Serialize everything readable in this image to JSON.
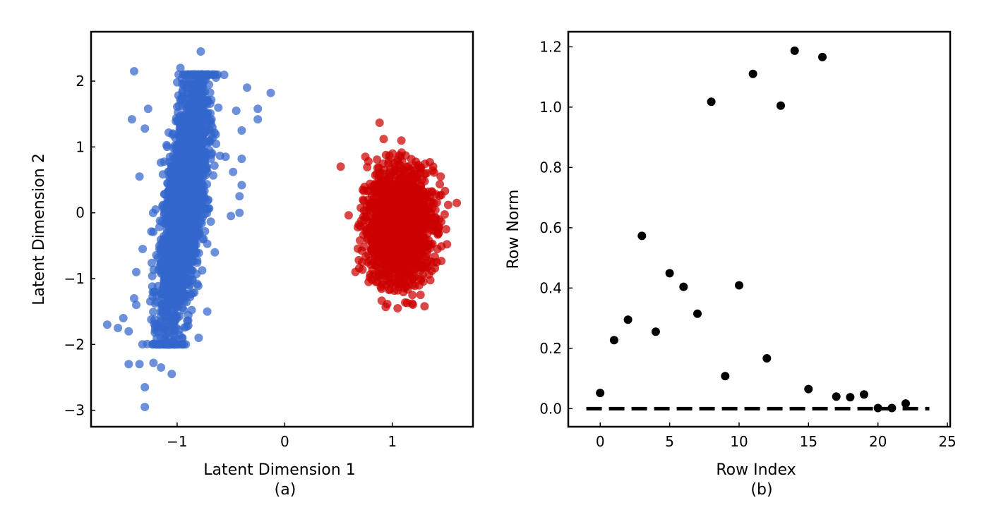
{
  "colors": {
    "cluster_blue": "#3366cc",
    "cluster_red": "#cc0000",
    "points": "#000000",
    "reference_line": "#000000"
  },
  "chart_data": [
    {
      "type": "scatter",
      "panel_label": "(a)",
      "title": "",
      "xlabel": "Latent Dimension 1",
      "ylabel": "Latent Dimension 2",
      "xlim": [
        -1.8,
        1.75
      ],
      "ylim": [
        -3.25,
        2.75
      ],
      "xticks": [
        -1,
        0,
        1
      ],
      "yticks": [
        -3,
        -2,
        -1,
        0,
        1,
        2
      ],
      "xtick_labels": [
        "−1",
        "0",
        "1"
      ],
      "ytick_labels": [
        "−3",
        "−2",
        "−1",
        "0",
        "1",
        "2"
      ],
      "grid": false,
      "series": [
        {
          "color": "#3366cc",
          "cluster": {
            "count": 2600,
            "center": [
              -0.93,
              0.2
            ],
            "std_along_axis": 1.0,
            "std_across_axis": 0.085,
            "y_range": [
              -2.0,
              2.1
            ]
          },
          "outliers": [
            [
              -1.4,
              2.15
            ],
            [
              -1.65,
              -1.7
            ],
            [
              -1.55,
              -1.75
            ],
            [
              -1.45,
              -2.3
            ],
            [
              -1.35,
              -2.3
            ],
            [
              -1.3,
              -2.65
            ],
            [
              -1.3,
              -2.95
            ],
            [
              -1.15,
              -2.35
            ],
            [
              -1.05,
              -2.45
            ],
            [
              -1.5,
              -1.6
            ],
            [
              -1.45,
              -1.8
            ],
            [
              -1.38,
              -1.4
            ],
            [
              -1.42,
              1.42
            ],
            [
              -0.78,
              2.45
            ],
            [
              -0.35,
              1.9
            ],
            [
              -0.13,
              1.82
            ],
            [
              -0.25,
              1.58
            ],
            [
              -0.25,
              1.42
            ],
            [
              -0.4,
              1.25
            ],
            [
              -0.4,
              0.82
            ],
            [
              -0.4,
              0.42
            ],
            [
              -0.42,
              0.25
            ],
            [
              -0.42,
              0.0
            ],
            [
              -0.5,
              -0.05
            ],
            [
              -0.65,
              -0.6
            ],
            [
              -1.3,
              1.28
            ],
            [
              -1.35,
              0.55
            ],
            [
              -1.38,
              -0.9
            ],
            [
              -1.4,
              -1.3
            ],
            [
              -0.72,
              -1.5
            ],
            [
              -0.95,
              -1.9
            ],
            [
              -0.8,
              -1.9
            ],
            [
              -0.97,
              2.2
            ],
            [
              -1.27,
              1.58
            ],
            [
              -0.45,
              1.55
            ],
            [
              -0.55,
              0.85
            ],
            [
              -0.48,
              0.62
            ],
            [
              -1.22,
              -2.28
            ],
            [
              -1.2,
              0.05
            ],
            [
              -1.32,
              -0.55
            ]
          ]
        },
        {
          "color": "#cc0000",
          "cluster": {
            "count": 1800,
            "center": [
              1.07,
              -0.2
            ],
            "std_x": 0.14,
            "std_y": 0.42
          },
          "outliers": [
            [
              0.52,
              0.7
            ],
            [
              1.6,
              0.15
            ],
            [
              1.52,
              0.12
            ],
            [
              1.5,
              -0.25
            ],
            [
              1.42,
              -0.55
            ],
            [
              1.3,
              -1.42
            ],
            [
              1.05,
              -1.45
            ],
            [
              0.68,
              -0.22
            ],
            [
              0.72,
              -0.75
            ],
            [
              0.75,
              0.85
            ],
            [
              0.92,
              1.12
            ],
            [
              1.45,
              0.55
            ],
            [
              1.38,
              0.7
            ],
            [
              0.7,
              -0.42
            ],
            [
              0.78,
              -1.05
            ]
          ]
        }
      ]
    },
    {
      "type": "scatter",
      "panel_label": "(b)",
      "title": "",
      "xlabel": "Row Index",
      "ylabel": "Row Norm",
      "xlim": [
        -2.3,
        25.2
      ],
      "ylim": [
        -0.06,
        1.25
      ],
      "xticks": [
        0,
        5,
        10,
        15,
        20,
        25
      ],
      "yticks": [
        0.0,
        0.2,
        0.4,
        0.6,
        0.8,
        1.0,
        1.2
      ],
      "xtick_labels": [
        "0",
        "5",
        "10",
        "15",
        "20",
        "25"
      ],
      "ytick_labels": [
        "0.0",
        "0.2",
        "0.4",
        "0.6",
        "0.8",
        "1.0",
        "1.2"
      ],
      "grid": false,
      "x": [
        0,
        1,
        2,
        3,
        4,
        5,
        6,
        7,
        8,
        9,
        10,
        11,
        12,
        13,
        14,
        15,
        16,
        17,
        18,
        19,
        20,
        21,
        22
      ],
      "y": [
        0.052,
        0.227,
        0.295,
        0.573,
        0.255,
        0.449,
        0.404,
        0.315,
        1.018,
        0.108,
        0.409,
        1.11,
        0.167,
        1.005,
        1.187,
        0.065,
        1.166,
        0.04,
        0.038,
        0.047,
        0.002,
        0.002,
        0.017
      ],
      "reference_line": {
        "y": 0.0,
        "x_range": [
          -1,
          23.7
        ],
        "style": "dashed"
      }
    }
  ]
}
